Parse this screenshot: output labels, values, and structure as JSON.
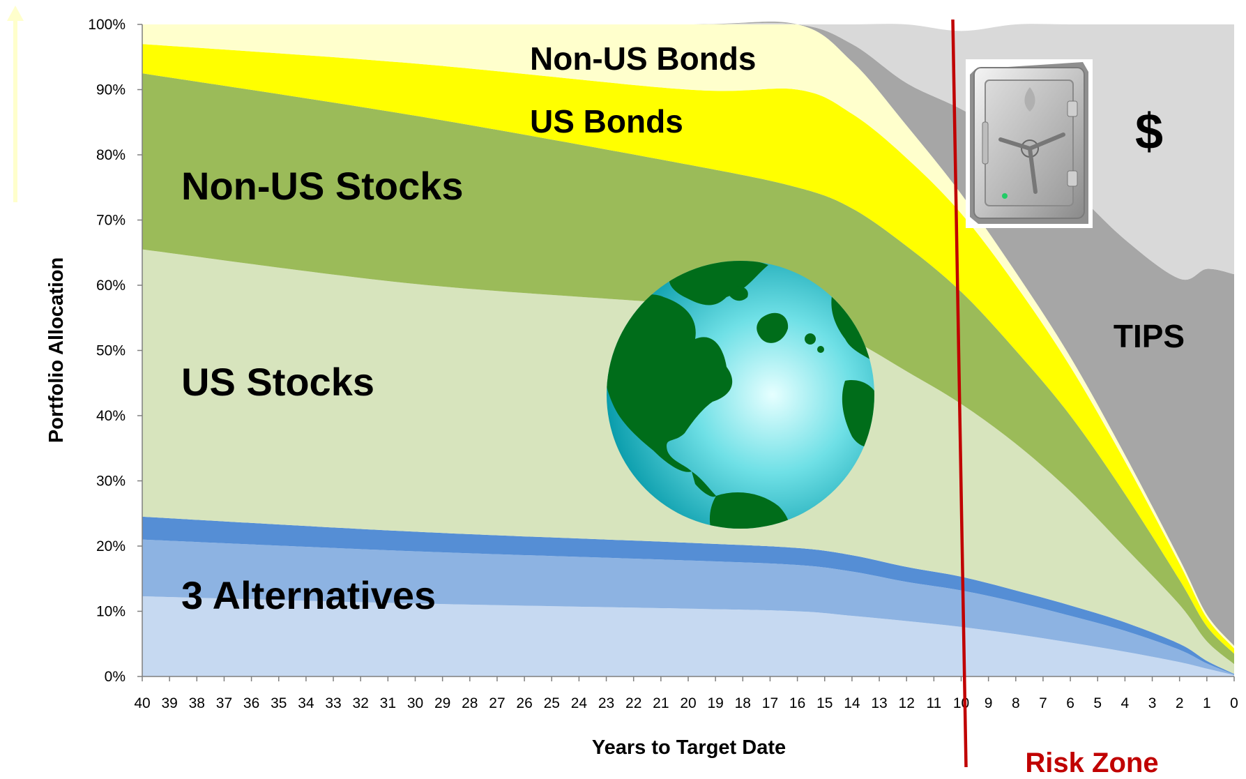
{
  "chart_data": {
    "type": "area",
    "stacked": true,
    "xlabel": "Years to Target Date",
    "ylabel": "Portfolio Allocation",
    "xlim": [
      40,
      0
    ],
    "ylim": [
      0,
      100
    ],
    "y_unit": "%",
    "x_ticks": [
      "40",
      "39",
      "38",
      "37",
      "36",
      "35",
      "34",
      "33",
      "32",
      "31",
      "30",
      "29",
      "28",
      "27",
      "26",
      "25",
      "24",
      "23",
      "22",
      "21",
      "20",
      "19",
      "18",
      "17",
      "16",
      "15",
      "14",
      "13",
      "12",
      "11",
      "10",
      "9",
      "8",
      "7",
      "6",
      "5",
      "4",
      "3",
      "2",
      "1",
      "0"
    ],
    "y_ticks": [
      "0%",
      "10%",
      "20%",
      "30%",
      "40%",
      "50%",
      "60%",
      "70%",
      "80%",
      "90%",
      "100%"
    ],
    "x": [
      40,
      30,
      20,
      16,
      14,
      12,
      10,
      8,
      6,
      4,
      2,
      1,
      0
    ],
    "series": [
      {
        "key": "alt1",
        "color": "#c6d9f1",
        "values": [
          12.3,
          11.2,
          10.4,
          10.0,
          9.3,
          8.5,
          7.6,
          6.5,
          5.2,
          3.8,
          2.2,
          1.2,
          0.2
        ]
      },
      {
        "key": "alt2",
        "color": "#8db3e2",
        "values": [
          8.7,
          8.0,
          7.4,
          7.1,
          6.8,
          6.0,
          5.6,
          4.9,
          4.1,
          3.2,
          1.9,
          0.8,
          0.1
        ]
      },
      {
        "key": "alt3",
        "color": "#558ed5",
        "values": [
          3.5,
          3.0,
          2.7,
          2.6,
          2.5,
          2.3,
          2.1,
          1.8,
          1.6,
          1.3,
          0.9,
          0.4,
          0.1
        ]
      },
      {
        "key": "us_stocks",
        "color": "#d7e4bd",
        "values": [
          41.0,
          38.0,
          36.5,
          35.0,
          33.0,
          30.0,
          26.5,
          22.5,
          17.5,
          11.5,
          6.0,
          3.0,
          1.5
        ]
      },
      {
        "key": "non_us_stocks",
        "color": "#9bbb59",
        "values": [
          27.0,
          25.8,
          21.5,
          20.3,
          20.2,
          19.2,
          17.2,
          14.3,
          11.6,
          8.2,
          3.8,
          2.3,
          1.6
        ]
      },
      {
        "key": "us_bonds",
        "color": "#ffff00",
        "values": [
          4.5,
          8.0,
          11.5,
          15.0,
          14.5,
          13.5,
          12.0,
          10.0,
          7.5,
          5.0,
          2.5,
          1.3,
          0.8
        ]
      },
      {
        "key": "non_us_bonds",
        "color": "#ffffcc",
        "values": [
          3.0,
          6.0,
          10.0,
          10.0,
          8.0,
          5.0,
          3.0,
          2.0,
          1.5,
          1.0,
          0.7,
          0.5,
          0.4
        ]
      },
      {
        "key": "tips",
        "color": "#a6a6a6",
        "values": [
          0.0,
          0.0,
          0.0,
          0.0,
          2.7,
          6.5,
          13.0,
          20.0,
          26.0,
          33.0,
          43.0,
          53.0,
          57.0
        ]
      },
      {
        "key": "cash",
        "color": "#d9d9d9",
        "values": [
          0.0,
          0.0,
          0.0,
          0.0,
          3.0,
          9.0,
          12.0,
          18.0,
          25.0,
          33.0,
          39.0,
          37.5,
          38.3
        ]
      }
    ],
    "labels": {
      "non_us_bonds": "Non-US Bonds",
      "us_bonds": "US Bonds",
      "non_us_stocks": "Non-US Stocks",
      "us_stocks": "US Stocks",
      "alternatives": "3 Alternatives",
      "tips": "TIPS",
      "cash": "$"
    },
    "annotations": [
      {
        "key": "risk_zone",
        "text": "Risk Zone",
        "x_start": 10,
        "color": "#c00000"
      }
    ],
    "icons": [
      "globe-icon",
      "safe-icon"
    ],
    "grid": false,
    "legend": "none"
  }
}
